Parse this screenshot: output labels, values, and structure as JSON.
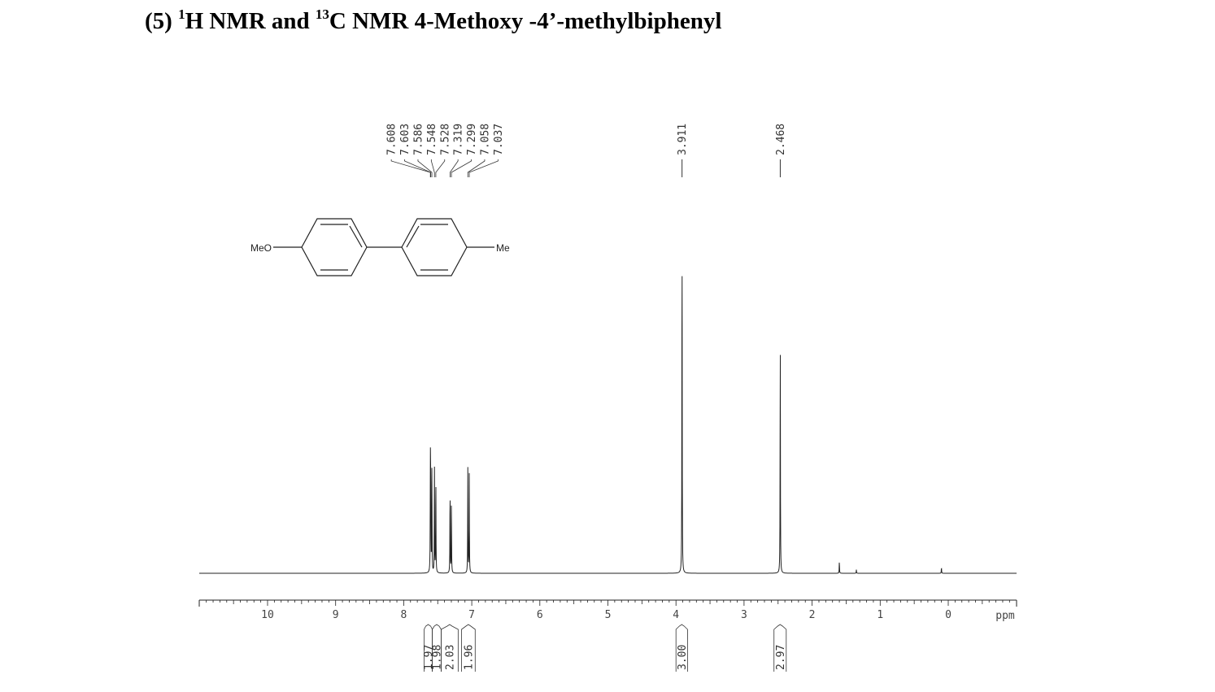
{
  "title": {
    "prefix": "(5) ",
    "sup1": "1",
    "mid": "H NMR and ",
    "sup2": "13",
    "suffix": "C NMR 4-Methoxy -4’-methylbiphenyl"
  },
  "structure": {
    "left_label": "MeO",
    "right_label": "Me"
  },
  "chart_data": {
    "type": "line",
    "xlabel": "ppm",
    "xlim": [
      11,
      -1
    ],
    "x_reversed": true,
    "x_ticks": [
      10,
      9,
      8,
      7,
      6,
      5,
      4,
      3,
      2,
      1,
      0
    ],
    "x_tick_labels": [
      "10",
      "9",
      "8",
      "7",
      "6",
      "5",
      "4",
      "3",
      "2",
      "1",
      "0"
    ],
    "peaks": [
      {
        "ppm": 7.608,
        "height": 0.86
      },
      {
        "ppm": 7.603,
        "height": 0.8
      },
      {
        "ppm": 7.586,
        "height": 0.88
      },
      {
        "ppm": 7.548,
        "height": 0.86
      },
      {
        "ppm": 7.528,
        "height": 0.83
      },
      {
        "ppm": 7.319,
        "height": 0.72
      },
      {
        "ppm": 7.299,
        "height": 0.61
      },
      {
        "ppm": 7.058,
        "height": 0.86
      },
      {
        "ppm": 7.037,
        "height": 0.81
      },
      {
        "ppm": 3.911,
        "height": 3.0
      },
      {
        "ppm": 2.468,
        "height": 2.0
      },
      {
        "ppm": 1.6,
        "height": 0.1
      },
      {
        "ppm": 1.35,
        "height": 0.03
      },
      {
        "ppm": 0.1,
        "height": 0.05
      }
    ],
    "peak_labels": [
      {
        "label": "7.608",
        "ppm": 7.608
      },
      {
        "label": "7.603",
        "ppm": 7.603
      },
      {
        "label": "7.586",
        "ppm": 7.586
      },
      {
        "label": "7.548",
        "ppm": 7.548
      },
      {
        "label": "7.528",
        "ppm": 7.528
      },
      {
        "label": "7.319",
        "ppm": 7.319
      },
      {
        "label": "7.299",
        "ppm": 7.299
      },
      {
        "label": "7.058",
        "ppm": 7.058
      },
      {
        "label": "7.037",
        "ppm": 7.037
      },
      {
        "label": "3.911",
        "ppm": 3.911
      },
      {
        "label": "2.468",
        "ppm": 2.468
      }
    ],
    "integrals": [
      {
        "value": "1.97",
        "from": 7.7,
        "to": 7.58
      },
      {
        "value": "1.98",
        "from": 7.58,
        "to": 7.45
      },
      {
        "value": "2.03",
        "from": 7.45,
        "to": 7.2
      },
      {
        "value": "1.96",
        "from": 7.15,
        "to": 6.95
      },
      {
        "value": "3.00",
        "from": 4.0,
        "to": 3.83
      },
      {
        "value": "2.97",
        "from": 2.56,
        "to": 2.38
      }
    ]
  }
}
